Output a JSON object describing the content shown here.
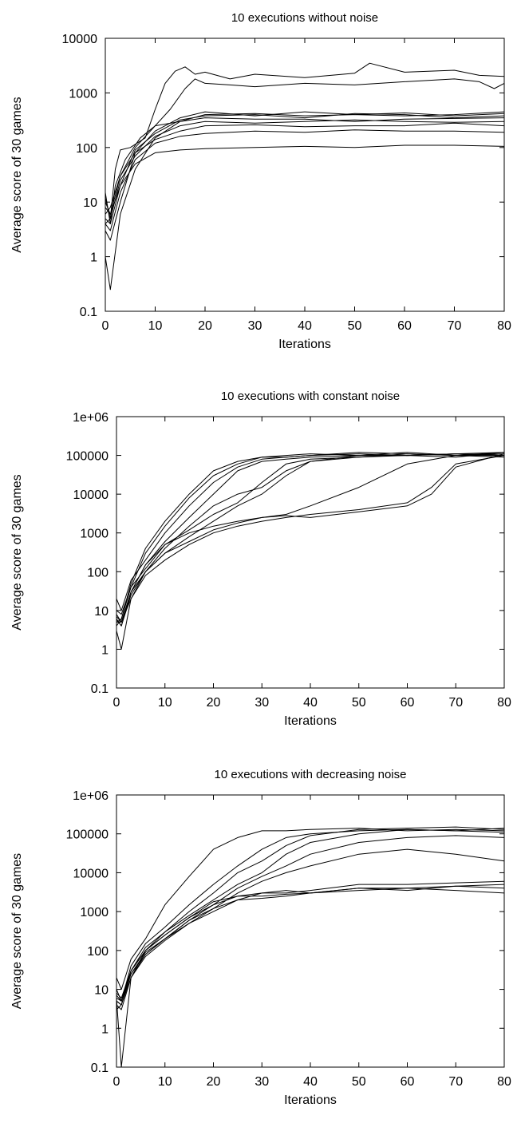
{
  "chart_data": [
    {
      "type": "line",
      "title": "10 executions without noise",
      "xlabel": "Iterations",
      "ylabel": "Average score of 30 games",
      "xlim": [
        0,
        80
      ],
      "ylim": [
        0.1,
        10000
      ],
      "yscale": "log",
      "grid": false,
      "legend": "none",
      "xticks": [
        "0",
        "10",
        "20",
        "30",
        "40",
        "50",
        "60",
        "70",
        "80"
      ],
      "yticks": [
        "0.1",
        "1",
        "10",
        "100",
        "1000",
        "10000"
      ],
      "series": [
        {
          "x": [
            0,
            1,
            2,
            3,
            5,
            8,
            10,
            12,
            14,
            16,
            18,
            20,
            25,
            30,
            40,
            50,
            53,
            60,
            70,
            75,
            80
          ],
          "values": [
            12,
            5,
            40,
            90,
            100,
            150,
            500,
            1500,
            2500,
            3000,
            2200,
            2400,
            1800,
            2200,
            1900,
            2300,
            3500,
            2400,
            2600,
            2100,
            2000
          ]
        },
        {
          "x": [
            0,
            1,
            2,
            4,
            7,
            10,
            13,
            16,
            18,
            20,
            25,
            30,
            40,
            50,
            60,
            70,
            75,
            78,
            80
          ],
          "values": [
            15,
            4,
            20,
            60,
            150,
            250,
            500,
            1200,
            1800,
            1500,
            1400,
            1300,
            1500,
            1400,
            1600,
            1800,
            1600,
            1200,
            1500
          ]
        },
        {
          "x": [
            0,
            1,
            3,
            6,
            10,
            15,
            20,
            30,
            40,
            50,
            60,
            70,
            80
          ],
          "values": [
            1,
            0.25,
            6,
            40,
            150,
            300,
            400,
            420,
            380,
            400,
            430,
            380,
            420
          ]
        },
        {
          "x": [
            0,
            1,
            3,
            6,
            10,
            15,
            20,
            30,
            40,
            50,
            60,
            70,
            80
          ],
          "values": [
            3,
            2,
            10,
            80,
            200,
            350,
            450,
            380,
            450,
            400,
            380,
            400,
            450
          ]
        },
        {
          "x": [
            0,
            1,
            3,
            6,
            10,
            15,
            20,
            30,
            40,
            50,
            60,
            70,
            80
          ],
          "values": [
            5,
            4,
            20,
            90,
            180,
            320,
            380,
            400,
            350,
            420,
            400,
            350,
            380
          ]
        },
        {
          "x": [
            0,
            1,
            3,
            6,
            10,
            15,
            20,
            30,
            40,
            50,
            60,
            70,
            80
          ],
          "values": [
            6,
            8,
            30,
            100,
            250,
            300,
            350,
            330,
            330,
            300,
            330,
            340,
            350
          ]
        },
        {
          "x": [
            0,
            1,
            3,
            6,
            10,
            15,
            20,
            30,
            40,
            50,
            60,
            70,
            80
          ],
          "values": [
            4,
            5,
            25,
            70,
            160,
            250,
            300,
            280,
            300,
            320,
            300,
            290,
            300
          ]
        },
        {
          "x": [
            0,
            1,
            3,
            6,
            10,
            15,
            20,
            30,
            40,
            50,
            60,
            70,
            80
          ],
          "values": [
            8,
            6,
            30,
            80,
            140,
            200,
            250,
            260,
            240,
            250,
            250,
            280,
            250
          ]
        },
        {
          "x": [
            0,
            1,
            3,
            6,
            10,
            15,
            20,
            30,
            40,
            50,
            60,
            70,
            80
          ],
          "values": [
            4,
            3,
            15,
            60,
            120,
            160,
            180,
            200,
            190,
            210,
            200,
            200,
            190
          ]
        },
        {
          "x": [
            0,
            1,
            3,
            6,
            10,
            15,
            20,
            30,
            40,
            50,
            60,
            70,
            80
          ],
          "values": [
            10,
            6,
            20,
            50,
            80,
            90,
            95,
            100,
            105,
            100,
            110,
            110,
            105
          ]
        }
      ]
    },
    {
      "type": "line",
      "title": "10 executions with constant noise",
      "xlabel": "Iterations",
      "ylabel": "Average score of 30 games",
      "xlim": [
        0,
        80
      ],
      "ylim": [
        0.1,
        1000000
      ],
      "yscale": "log",
      "grid": false,
      "legend": "none",
      "xticks": [
        "0",
        "10",
        "20",
        "30",
        "40",
        "50",
        "60",
        "70",
        "80"
      ],
      "yticks": [
        "0.1",
        "1",
        "10",
        "100",
        "1000",
        "10000",
        "100000",
        "1e+06"
      ],
      "series": [
        {
          "x": [
            0,
            1,
            3,
            6,
            10,
            15,
            20,
            25,
            30,
            35,
            40,
            50,
            60,
            70,
            80
          ],
          "values": [
            20,
            10,
            60,
            200,
            1000,
            5000,
            20000,
            50000,
            80000,
            90000,
            100000,
            110000,
            100000,
            110000,
            100000
          ]
        },
        {
          "x": [
            0,
            1,
            3,
            6,
            10,
            15,
            20,
            25,
            30,
            35,
            40,
            50,
            60,
            70,
            80
          ],
          "values": [
            10,
            8,
            40,
            300,
            1500,
            8000,
            30000,
            60000,
            90000,
            100000,
            110000,
            100000,
            120000,
            100000,
            90000
          ]
        },
        {
          "x": [
            0,
            1,
            3,
            6,
            10,
            15,
            20,
            25,
            30,
            35,
            40,
            50,
            60,
            70,
            80
          ],
          "values": [
            5,
            6,
            50,
            400,
            2000,
            10000,
            40000,
            70000,
            90000,
            90000,
            100000,
            120000,
            110000,
            100000,
            110000
          ]
        },
        {
          "x": [
            0,
            1,
            3,
            6,
            10,
            15,
            20,
            25,
            30,
            35,
            40,
            50,
            60,
            70,
            80
          ],
          "values": [
            8,
            5,
            30,
            150,
            600,
            2500,
            10000,
            40000,
            70000,
            80000,
            90000,
            100000,
            100000,
            110000,
            120000
          ]
        },
        {
          "x": [
            0,
            1,
            3,
            6,
            10,
            15,
            20,
            25,
            30,
            35,
            40,
            50,
            60,
            70,
            80
          ],
          "values": [
            6,
            4,
            30,
            100,
            400,
            1500,
            5000,
            10000,
            15000,
            40000,
            70000,
            100000,
            100000,
            110000,
            100000
          ]
        },
        {
          "x": [
            0,
            1,
            3,
            6,
            10,
            15,
            20,
            25,
            30,
            35,
            40,
            50,
            60,
            70,
            80
          ],
          "values": [
            4,
            6,
            40,
            120,
            500,
            1200,
            3000,
            6000,
            20000,
            60000,
            80000,
            90000,
            100000,
            90000,
            120000
          ]
        },
        {
          "x": [
            0,
            1,
            3,
            6,
            10,
            15,
            20,
            25,
            30,
            35,
            40,
            50,
            60,
            70,
            80
          ],
          "values": [
            3,
            1,
            20,
            100,
            300,
            800,
            2000,
            5000,
            10000,
            30000,
            70000,
            90000,
            110000,
            100000,
            100000
          ]
        },
        {
          "x": [
            0,
            1,
            3,
            6,
            10,
            15,
            20,
            25,
            30,
            35,
            40,
            50,
            60,
            70,
            80
          ],
          "values": [
            7,
            5,
            30,
            150,
            500,
            1000,
            1500,
            2000,
            2500,
            3000,
            5000,
            15000,
            60000,
            100000,
            120000
          ]
        },
        {
          "x": [
            0,
            1,
            3,
            6,
            10,
            15,
            20,
            25,
            30,
            35,
            40,
            50,
            60,
            65,
            70,
            80
          ],
          "values": [
            6,
            4,
            25,
            100,
            300,
            600,
            1200,
            1800,
            2500,
            2800,
            2500,
            3500,
            5000,
            10000,
            50000,
            110000
          ]
        },
        {
          "x": [
            0,
            1,
            3,
            6,
            10,
            15,
            20,
            25,
            30,
            35,
            40,
            50,
            60,
            65,
            70,
            80
          ],
          "values": [
            5,
            5,
            20,
            80,
            200,
            500,
            1000,
            1500,
            2000,
            2500,
            3000,
            4000,
            6000,
            15000,
            60000,
            100000
          ]
        }
      ]
    },
    {
      "type": "line",
      "title": "10 executions with decreasing noise",
      "xlabel": "Iterations",
      "ylabel": "Average score of 30 games",
      "xlim": [
        0,
        80
      ],
      "ylim": [
        0.1,
        1000000
      ],
      "yscale": "log",
      "grid": false,
      "legend": "none",
      "xticks": [
        "0",
        "10",
        "20",
        "30",
        "40",
        "50",
        "60",
        "70",
        "80"
      ],
      "yticks": [
        "0.1",
        "1",
        "10",
        "100",
        "1000",
        "10000",
        "100000",
        "1e+06"
      ],
      "series": [
        {
          "x": [
            0,
            1,
            3,
            6,
            10,
            15,
            20,
            25,
            30,
            35,
            40,
            50,
            60,
            70,
            80
          ],
          "values": [
            20,
            10,
            60,
            200,
            1500,
            8000,
            40000,
            80000,
            120000,
            120000,
            130000,
            140000,
            120000,
            130000,
            120000
          ]
        },
        {
          "x": [
            0,
            1,
            3,
            6,
            10,
            15,
            20,
            25,
            30,
            35,
            40,
            50,
            60,
            70,
            80
          ],
          "values": [
            10,
            5,
            40,
            150,
            400,
            1500,
            5000,
            15000,
            40000,
            80000,
            100000,
            120000,
            130000,
            120000,
            140000
          ]
        },
        {
          "x": [
            0,
            1,
            3,
            6,
            10,
            15,
            20,
            25,
            30,
            35,
            40,
            50,
            60,
            70,
            80
          ],
          "values": [
            8,
            6,
            30,
            120,
            300,
            1000,
            3000,
            10000,
            20000,
            50000,
            90000,
            130000,
            140000,
            150000,
            130000
          ]
        },
        {
          "x": [
            0,
            1,
            3,
            6,
            10,
            15,
            20,
            25,
            30,
            35,
            40,
            50,
            60,
            70,
            80
          ],
          "values": [
            5,
            4,
            30,
            100,
            300,
            800,
            2000,
            5000,
            10000,
            30000,
            60000,
            100000,
            130000,
            120000,
            110000
          ]
        },
        {
          "x": [
            0,
            1,
            3,
            6,
            10,
            15,
            20,
            25,
            30,
            35,
            40,
            50,
            60,
            70,
            80
          ],
          "values": [
            6,
            0.1,
            20,
            100,
            250,
            700,
            1500,
            4000,
            8000,
            15000,
            30000,
            60000,
            80000,
            90000,
            80000
          ]
        },
        {
          "x": [
            0,
            1,
            3,
            6,
            10,
            15,
            20,
            25,
            30,
            35,
            40,
            50,
            60,
            70,
            80
          ],
          "values": [
            7,
            5,
            25,
            80,
            200,
            600,
            1200,
            3000,
            6000,
            10000,
            15000,
            30000,
            40000,
            30000,
            20000
          ]
        },
        {
          "x": [
            0,
            1,
            3,
            6,
            10,
            15,
            20,
            25,
            30,
            35,
            40,
            50,
            60,
            70,
            80
          ],
          "values": [
            4,
            3,
            20,
            80,
            200,
            500,
            1000,
            2000,
            3000,
            3500,
            3000,
            4000,
            4000,
            3500,
            3000
          ]
        },
        {
          "x": [
            0,
            1,
            3,
            6,
            10,
            15,
            20,
            25,
            30,
            35,
            40,
            50,
            60,
            70,
            80
          ],
          "values": [
            5,
            4,
            25,
            90,
            200,
            600,
            1500,
            2500,
            3000,
            3000,
            3500,
            5000,
            5000,
            5500,
            6000
          ]
        },
        {
          "x": [
            0,
            1,
            3,
            6,
            10,
            15,
            20,
            25,
            30,
            35,
            40,
            50,
            60,
            70,
            80
          ],
          "values": [
            6,
            5,
            30,
            100,
            250,
            700,
            1800,
            2500,
            2500,
            2800,
            3000,
            4000,
            3500,
            4500,
            5000
          ]
        },
        {
          "x": [
            0,
            1,
            3,
            6,
            10,
            15,
            20,
            25,
            30,
            35,
            40,
            50,
            60,
            70,
            80
          ],
          "values": [
            3,
            4,
            20,
            70,
            180,
            500,
            1200,
            2000,
            2200,
            2500,
            3000,
            3500,
            4000,
            4500,
            4000
          ]
        }
      ]
    }
  ]
}
